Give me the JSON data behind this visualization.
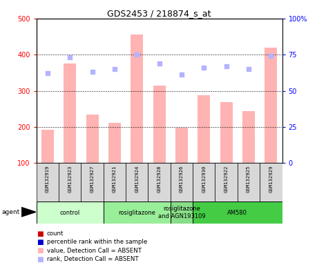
{
  "title": "GDS2453 / 218874_s_at",
  "samples": [
    "GSM132919",
    "GSM132923",
    "GSM132927",
    "GSM132921",
    "GSM132924",
    "GSM132928",
    "GSM132926",
    "GSM132930",
    "GSM132922",
    "GSM132925",
    "GSM132929"
  ],
  "bar_values": [
    193,
    375,
    235,
    212,
    455,
    315,
    197,
    287,
    268,
    243,
    420
  ],
  "rank_values": [
    62,
    73,
    63,
    65,
    75,
    69,
    61,
    66,
    67,
    65,
    74
  ],
  "ylim_left": [
    100,
    500
  ],
  "ylim_right": [
    0,
    100
  ],
  "yticks_left": [
    100,
    200,
    300,
    400,
    500
  ],
  "yticks_right": [
    0,
    25,
    50,
    75,
    100
  ],
  "bar_color": "#ffb3b3",
  "rank_color": "#b3b3ff",
  "agent_groups": [
    {
      "label": "control",
      "start": 0,
      "end": 3,
      "color": "#ccffcc"
    },
    {
      "label": "rosiglitazone",
      "start": 3,
      "end": 6,
      "color": "#99ee99"
    },
    {
      "label": "rosiglitazone\nand AGN193109",
      "start": 6,
      "end": 7,
      "color": "#88dd88"
    },
    {
      "label": "AM580",
      "start": 7,
      "end": 11,
      "color": "#44cc44"
    }
  ],
  "legend_items": [
    {
      "color": "#cc0000",
      "label": "count"
    },
    {
      "color": "#0000cc",
      "label": "percentile rank within the sample"
    },
    {
      "color": "#ffb3b3",
      "label": "value, Detection Call = ABSENT"
    },
    {
      "color": "#b3b3ff",
      "label": "rank, Detection Call = ABSENT"
    }
  ]
}
